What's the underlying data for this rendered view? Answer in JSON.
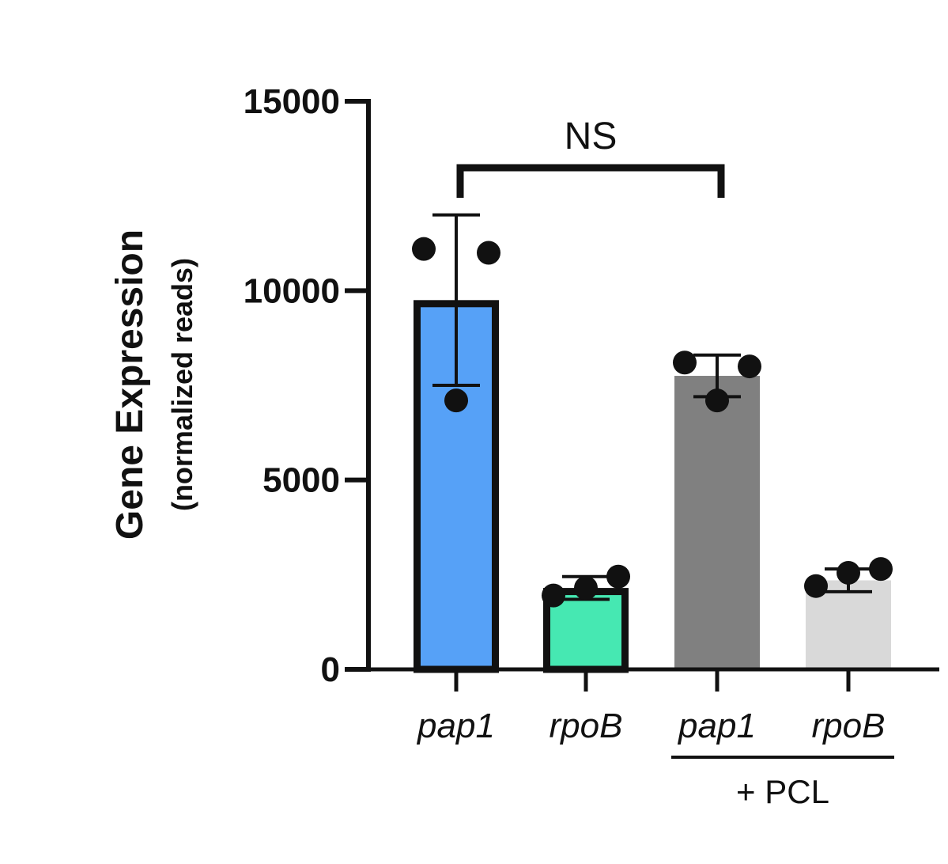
{
  "chart_data": {
    "type": "bar",
    "title": "",
    "xlabel": "",
    "ylabel": "Gene Expression",
    "ylabel_sub": "(normalized reads)",
    "ylim": [
      0,
      15000
    ],
    "yticks": [
      0,
      5000,
      10000,
      15000
    ],
    "ytick_labels": [
      "0",
      "5000",
      "10000",
      "15000"
    ],
    "grid": false,
    "legend": "none",
    "categories": [
      "pap1",
      "rpoB",
      "pap1",
      "rpoB"
    ],
    "values": [
      9750,
      2150,
      7750,
      2350
    ],
    "error": [
      2250,
      300,
      550,
      300
    ],
    "points": [
      [
        11100,
        11000,
        7100
      ],
      [
        1950,
        2450,
        2150
      ],
      [
        8100,
        8000,
        7100
      ],
      [
        2200,
        2650,
        2550
      ]
    ],
    "colors": [
      "#56a1f7",
      "#46e8b2",
      "#808080",
      "#d9d9d9"
    ],
    "outlined": [
      true,
      true,
      false,
      false
    ],
    "group_label": "+ PCL",
    "group_members": [
      2,
      3
    ],
    "annotations": [
      {
        "text": "NS",
        "from": 0,
        "to": 2
      }
    ]
  }
}
